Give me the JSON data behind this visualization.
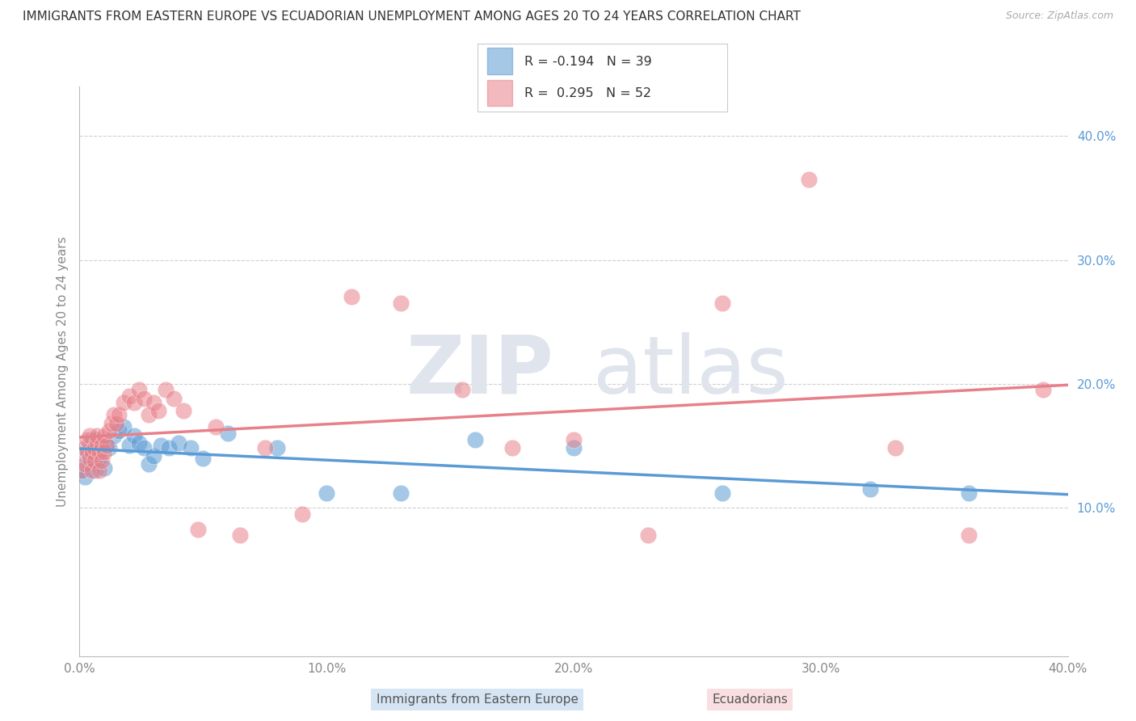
{
  "title": "IMMIGRANTS FROM EASTERN EUROPE VS ECUADORIAN UNEMPLOYMENT AMONG AGES 20 TO 24 YEARS CORRELATION CHART",
  "source": "Source: ZipAtlas.com",
  "ylabel": "Unemployment Among Ages 20 to 24 years",
  "xlim": [
    0.0,
    0.4
  ],
  "ylim": [
    -0.02,
    0.44
  ],
  "xticks": [
    0.0,
    0.1,
    0.2,
    0.3,
    0.4
  ],
  "yticks_right": [
    0.1,
    0.2,
    0.3,
    0.4
  ],
  "grid_color": "#d0d0d0",
  "background_color": "#ffffff",
  "blue_color": "#5b9bd5",
  "pink_color": "#e8808a",
  "watermark_color": "#e0e4ec",
  "legend_blue_r": "R = -0.194",
  "legend_blue_n": "N = 39",
  "legend_pink_r": "R =  0.295",
  "legend_pink_n": "N = 52",
  "legend_blue_label": "Immigrants from Eastern Europe",
  "legend_pink_label": "Ecuadorians",
  "blue_scatter_x": [
    0.001,
    0.002,
    0.003,
    0.003,
    0.004,
    0.004,
    0.005,
    0.005,
    0.006,
    0.006,
    0.007,
    0.008,
    0.009,
    0.01,
    0.011,
    0.012,
    0.014,
    0.016,
    0.018,
    0.02,
    0.022,
    0.024,
    0.026,
    0.028,
    0.03,
    0.033,
    0.036,
    0.04,
    0.045,
    0.05,
    0.06,
    0.08,
    0.1,
    0.13,
    0.16,
    0.2,
    0.26,
    0.32,
    0.36
  ],
  "blue_scatter_y": [
    0.13,
    0.125,
    0.14,
    0.145,
    0.135,
    0.15,
    0.145,
    0.155,
    0.13,
    0.145,
    0.155,
    0.14,
    0.148,
    0.132,
    0.15,
    0.148,
    0.158,
    0.162,
    0.165,
    0.15,
    0.158,
    0.152,
    0.148,
    0.135,
    0.142,
    0.15,
    0.148,
    0.152,
    0.148,
    0.14,
    0.16,
    0.148,
    0.112,
    0.112,
    0.155,
    0.148,
    0.112,
    0.115,
    0.112
  ],
  "pink_scatter_x": [
    0.001,
    0.002,
    0.002,
    0.003,
    0.003,
    0.004,
    0.004,
    0.005,
    0.005,
    0.006,
    0.006,
    0.007,
    0.007,
    0.008,
    0.008,
    0.009,
    0.009,
    0.01,
    0.01,
    0.011,
    0.012,
    0.013,
    0.014,
    0.015,
    0.016,
    0.018,
    0.02,
    0.022,
    0.024,
    0.026,
    0.028,
    0.03,
    0.032,
    0.035,
    0.038,
    0.042,
    0.048,
    0.055,
    0.065,
    0.075,
    0.09,
    0.11,
    0.13,
    0.155,
    0.175,
    0.2,
    0.23,
    0.26,
    0.295,
    0.33,
    0.36,
    0.39
  ],
  "pink_scatter_y": [
    0.13,
    0.148,
    0.135,
    0.145,
    0.155,
    0.14,
    0.158,
    0.13,
    0.145,
    0.138,
    0.148,
    0.152,
    0.158,
    0.13,
    0.145,
    0.15,
    0.138,
    0.145,
    0.158,
    0.15,
    0.162,
    0.168,
    0.175,
    0.168,
    0.175,
    0.185,
    0.19,
    0.185,
    0.195,
    0.188,
    0.175,
    0.185,
    0.178,
    0.195,
    0.188,
    0.178,
    0.082,
    0.165,
    0.078,
    0.148,
    0.095,
    0.27,
    0.265,
    0.195,
    0.148,
    0.155,
    0.078,
    0.265,
    0.365,
    0.148,
    0.078,
    0.195
  ]
}
